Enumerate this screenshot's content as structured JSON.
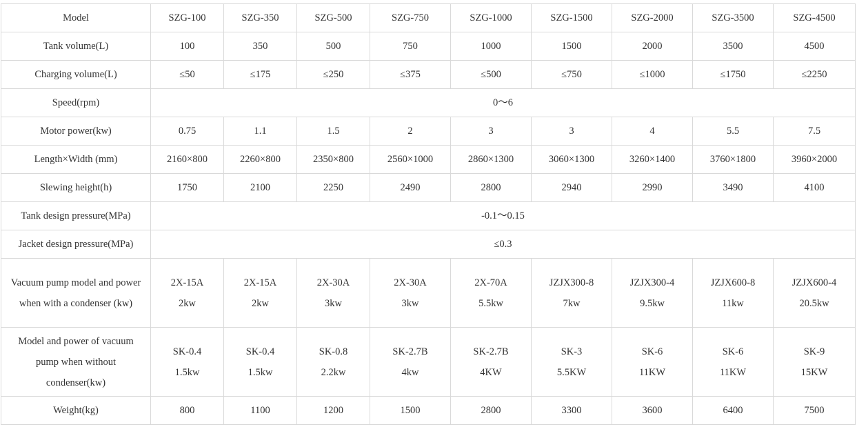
{
  "table": {
    "models": [
      "SZG-100",
      "SZG-350",
      "SZG-500",
      "SZG-750",
      "SZG-1000",
      "SZG-1500",
      "SZG-2000",
      "SZG-3500",
      "SZG-4500"
    ],
    "header_label": "Model",
    "rows": [
      {
        "label": "Tank volume(L)",
        "values": [
          "100",
          "350",
          "500",
          "750",
          "1000",
          "1500",
          "2000",
          "3500",
          "4500"
        ]
      },
      {
        "label": "Charging volume(L)",
        "values": [
          "≤50",
          "≤175",
          "≤250",
          "≤375",
          "≤500",
          "≤750",
          "≤1000",
          "≤1750",
          "≤2250"
        ]
      },
      {
        "label": "Speed(rpm)",
        "span_value": "0～6"
      },
      {
        "label": "Motor power(kw)",
        "values": [
          "0.75",
          "1.1",
          "1.5",
          "2",
          "3",
          "3",
          "4",
          "5.5",
          "7.5"
        ]
      },
      {
        "label": "Length×Width (mm)",
        "values": [
          "2160×800",
          "2260×800",
          "2350×800",
          "2560×1000",
          "2860×1300",
          "3060×1300",
          "3260×1400",
          "3760×1800",
          "3960×2000"
        ]
      },
      {
        "label": "Slewing height(h)",
        "values": [
          "1750",
          "2100",
          "2250",
          "2490",
          "2800",
          "2940",
          "2990",
          "3490",
          "4100"
        ]
      },
      {
        "label": "Tank design pressure(MPa)",
        "span_value": "-0.1～0.15"
      },
      {
        "label": "Jacket design pressure(MPa)",
        "span_value": "≤0.3"
      },
      {
        "label": "Vacuum pump model and power when with a condenser (kw)",
        "values": [
          {
            "model": "2X-15A",
            "power": "2kw"
          },
          {
            "model": "2X-15A",
            "power": "2kw"
          },
          {
            "model": "2X-30A",
            "power": "3kw"
          },
          {
            "model": "2X-30A",
            "power": "3kw"
          },
          {
            "model": "2X-70A",
            "power": "5.5kw"
          },
          {
            "model": "JZJX300-8",
            "power": "7kw"
          },
          {
            "model": "JZJX300-4",
            "power": "9.5kw"
          },
          {
            "model": "JZJX600-8",
            "power": "11kw"
          },
          {
            "model": "JZJX600-4",
            "power": "20.5kw"
          }
        ]
      },
      {
        "label": "Model and power of vacuum pump when without condenser(kw)",
        "values": [
          {
            "model": "SK-0.4",
            "power": "1.5kw"
          },
          {
            "model": "SK-0.4",
            "power": "1.5kw"
          },
          {
            "model": "SK-0.8",
            "power": "2.2kw"
          },
          {
            "model": "SK-2.7B",
            "power": "4kw"
          },
          {
            "model": "SK-2.7B",
            "power": "4KW"
          },
          {
            "model": "SK-3",
            "power": "5.5KW"
          },
          {
            "model": "SK-6",
            "power": "11KW"
          },
          {
            "model": "SK-6",
            "power": "11KW"
          },
          {
            "model": "SK-9",
            "power": "15KW"
          }
        ]
      },
      {
        "label": "Weight(kg)",
        "values": [
          "800",
          "1100",
          "1200",
          "1500",
          "2800",
          "3300",
          "3600",
          "6400",
          "7500"
        ]
      }
    ]
  }
}
